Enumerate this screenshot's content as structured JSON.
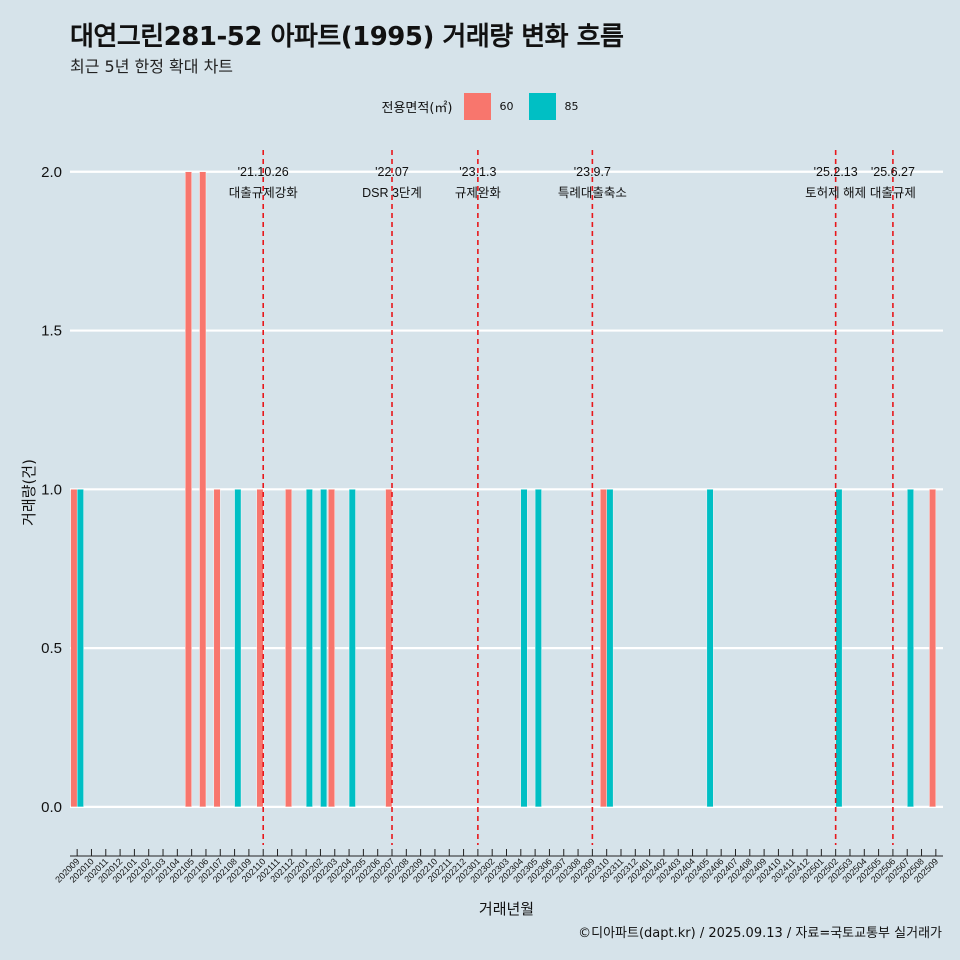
{
  "title": "대연그린281-52 아파트(1995) 거래량 변화 흐름",
  "subtitle": "최근 5년 한정 확대 차트",
  "caption": "©디아파트(dapt.kr) / 2025.09.13 / 자료=국토교통부 실거래가",
  "legend": {
    "title": "전용면적(㎡)",
    "items": [
      {
        "label": "60",
        "color": "#f8766d"
      },
      {
        "label": "85",
        "color": "#00bfc4"
      }
    ]
  },
  "chart_data": {
    "type": "bar",
    "xlabel": "거래년월",
    "ylabel": "거래량(건)",
    "ylim": [
      -0.12,
      2.1
    ],
    "yticks": [
      "0.0",
      "0.5",
      "1.0",
      "1.5",
      "2.0"
    ],
    "categories": [
      "202009",
      "202010",
      "202011",
      "202012",
      "202101",
      "202102",
      "202103",
      "202104",
      "202105",
      "202106",
      "202107",
      "202108",
      "202109",
      "202110",
      "202111",
      "202112",
      "202201",
      "202202",
      "202203",
      "202204",
      "202205",
      "202206",
      "202207",
      "202208",
      "202209",
      "202210",
      "202211",
      "202212",
      "202301",
      "202302",
      "202303",
      "202304",
      "202305",
      "202306",
      "202307",
      "202308",
      "202309",
      "202310",
      "202311",
      "202312",
      "202401",
      "202402",
      "202403",
      "202404",
      "202405",
      "202406",
      "202407",
      "202408",
      "202409",
      "202410",
      "202411",
      "202412",
      "202501",
      "202502",
      "202503",
      "202504",
      "202505",
      "202506",
      "202507",
      "202508",
      "202509"
    ],
    "series": [
      {
        "name": "60",
        "color": "#f8766d",
        "values": [
          1,
          0,
          0,
          0,
          0,
          0,
          0,
          0,
          2,
          2,
          1,
          0,
          0,
          1,
          0,
          1,
          0,
          0,
          1,
          0,
          0,
          0,
          1,
          0,
          0,
          0,
          0,
          0,
          0,
          0,
          0,
          0,
          0,
          0,
          0,
          0,
          0,
          1,
          0,
          0,
          0,
          0,
          0,
          0,
          0,
          0,
          0,
          0,
          0,
          0,
          0,
          0,
          0,
          0,
          0,
          0,
          0,
          0,
          0,
          0,
          1
        ]
      },
      {
        "name": "85",
        "color": "#00bfc4",
        "values": [
          1,
          0,
          0,
          0,
          0,
          0,
          0,
          0,
          0,
          0,
          0,
          1,
          0,
          0,
          0,
          0,
          1,
          1,
          0,
          1,
          0,
          0,
          0,
          0,
          0,
          0,
          0,
          0,
          0,
          0,
          0,
          1,
          1,
          0,
          0,
          0,
          0,
          1,
          0,
          0,
          0,
          0,
          0,
          0,
          1,
          0,
          0,
          0,
          0,
          0,
          0,
          0,
          0,
          1,
          0,
          0,
          0,
          0,
          1,
          0,
          0
        ]
      }
    ],
    "annotations": [
      {
        "date": "'21.10.26",
        "label": "대출규제강화",
        "x": 13.0
      },
      {
        "date": "'22.07",
        "label": "DSR 3단계",
        "x": 22.0
      },
      {
        "date": "'23.1.3",
        "label": "규제완화",
        "x": 28.0
      },
      {
        "date": "'23.9.7",
        "label": "특례대출축소",
        "x": 36.0
      },
      {
        "date": "'25.2.13",
        "label": "토허제 해제",
        "x": 53.0
      },
      {
        "date": "'25.6.27",
        "label": "대출규제",
        "x": 57.0
      }
    ]
  }
}
